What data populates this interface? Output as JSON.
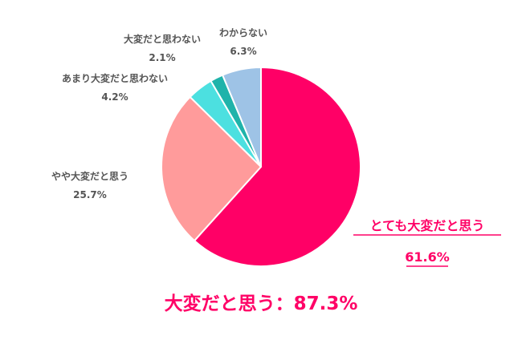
{
  "chart_data": {
    "type": "pie",
    "start_angle_deg": 0,
    "direction": "clockwise",
    "slices": [
      {
        "label": "とても大変だと思う",
        "value": 61.6,
        "value_label": "61.6%",
        "color": "#ff0066"
      },
      {
        "label": "やや大変だと思う",
        "value": 25.7,
        "value_label": "25.7%",
        "color": "#ff9b9b"
      },
      {
        "label": "あまり大変だと思わない",
        "value": 4.2,
        "value_label": "4.2%",
        "color": "#4ce0e0"
      },
      {
        "label": "大変だと思わない",
        "value": 2.1,
        "value_label": "2.1%",
        "color": "#1fb3aa"
      },
      {
        "label": "わからない",
        "value": 6.3,
        "value_label": "6.3%",
        "color": "#9ec3e6"
      }
    ],
    "highlight_color": "#ff0066",
    "label_color": "#555555",
    "summary": "大変だと思う：87.3%"
  }
}
